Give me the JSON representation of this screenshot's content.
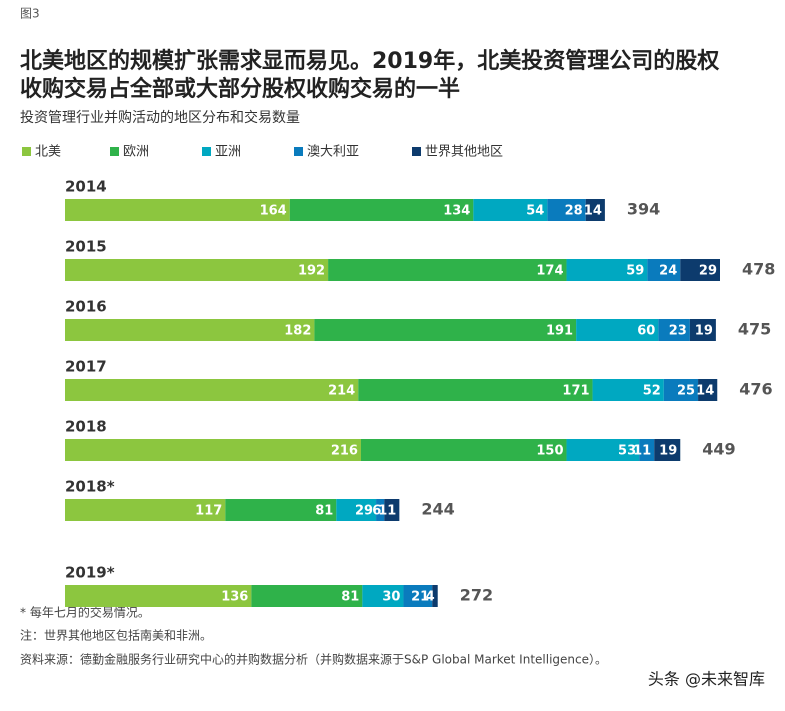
{
  "figure_label": "图3",
  "chart_data": {
    "type": "bar",
    "orientation": "horizontal",
    "stacked": true,
    "title": "北美地区的规模扩张需求显而易见。2019年，北美投资管理公司的股权收购交易占全部或大部分股权收购交易的一半",
    "subtitle": "投资管理行业并购活动的地区分布和交易数量",
    "categories": [
      "2014",
      "2015",
      "2016",
      "2017",
      "2018",
      "2018*",
      "2019*"
    ],
    "series": [
      {
        "name": "北美",
        "color": "#8cc63f",
        "values": [
          164,
          192,
          182,
          214,
          216,
          117,
          136
        ]
      },
      {
        "name": "欧洲",
        "color": "#2fb24a",
        "values": [
          134,
          174,
          191,
          171,
          150,
          81,
          81
        ]
      },
      {
        "name": "亚洲",
        "color": "#00a8c1",
        "values": [
          54,
          59,
          60,
          52,
          53,
          29,
          30
        ]
      },
      {
        "name": "澳大利亚",
        "color": "#0a7bbd",
        "values": [
          28,
          24,
          23,
          25,
          11,
          6,
          21
        ]
      },
      {
        "name": "世界其他地区",
        "color": "#0d3b6d",
        "values": [
          14,
          29,
          19,
          14,
          19,
          11,
          4
        ]
      }
    ],
    "totals": [
      394,
      478,
      475,
      476,
      449,
      244,
      272
    ]
  },
  "notes": [
    "* 每年七月的交易情况。",
    "注：世界其他地区包括南美和非洲。",
    "资料来源：德勤金融服务行业研究中心的并购数据分析（并购数据来源于S&P Global Market Intelligence）。"
  ],
  "watermark": "头条 @未来智库"
}
